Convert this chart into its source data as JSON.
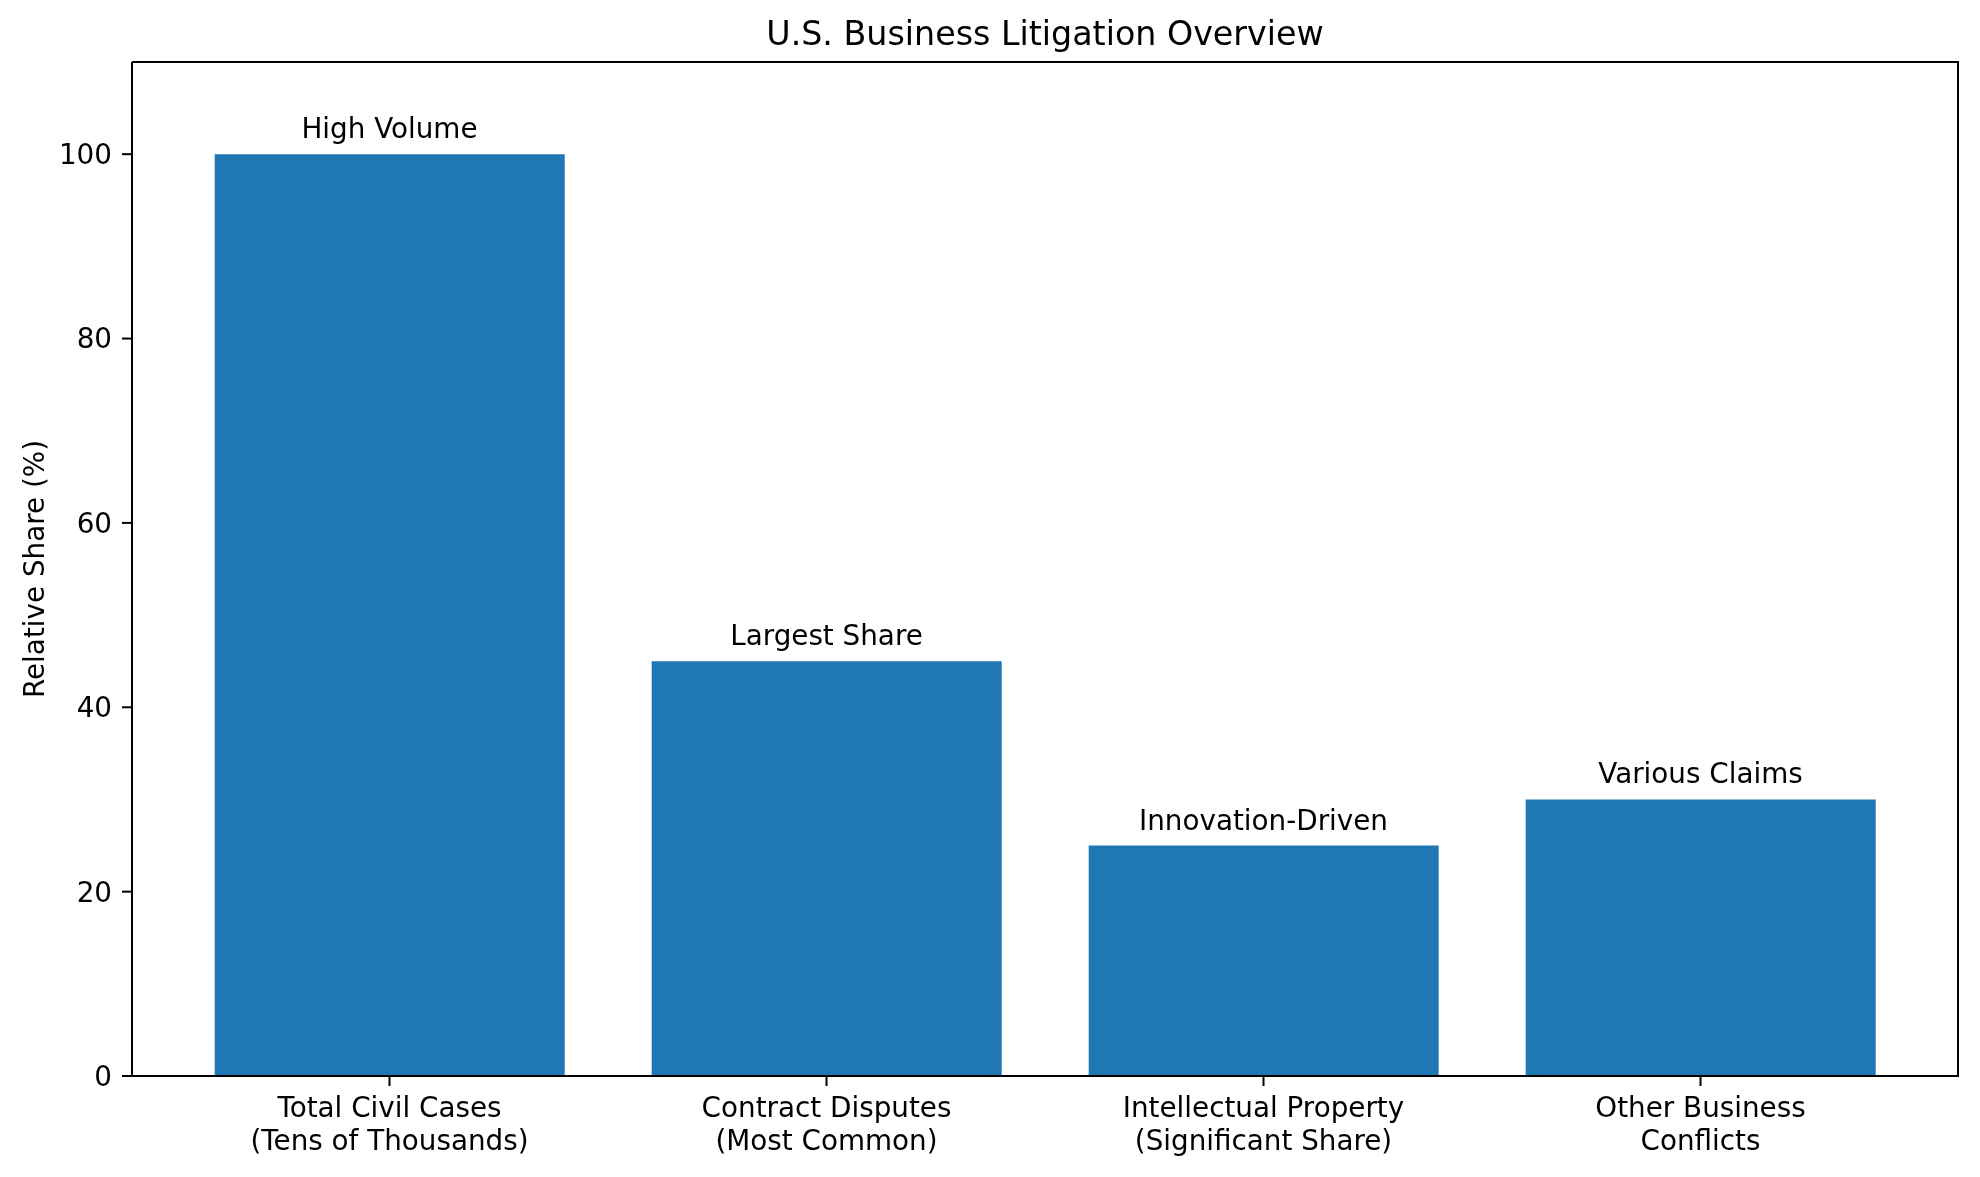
{
  "chart_data": {
    "type": "bar",
    "title": "U.S. Business Litigation Overview",
    "ylabel": "Relative Share (%)",
    "categories": [
      "Total Civil Cases\n(Tens of Thousands)",
      "Contract Disputes\n(Most Common)",
      "Intellectual Property\n(Significant Share)",
      "Other Business\nConflicts"
    ],
    "values": [
      100,
      45,
      25,
      30
    ],
    "color": "#1f77b4",
    "ylim": [
      0,
      110
    ],
    "yticks": [
      0,
      20,
      40,
      60,
      80,
      100
    ],
    "annotations": [
      {
        "text": "High Volume",
        "x": "Total Civil Cases\n(Tens of Thousands)",
        "y": 100
      },
      {
        "text": "Largest Share",
        "x": "Contract Disputes\n(Most Common)",
        "y": 45
      },
      {
        "text": "Innovation-Driven",
        "x": "Intellectual Property\n(Significant Share)",
        "y": 25
      },
      {
        "text": "Various Claims",
        "x": "Other Business\nConflicts",
        "y": 30
      }
    ]
  }
}
